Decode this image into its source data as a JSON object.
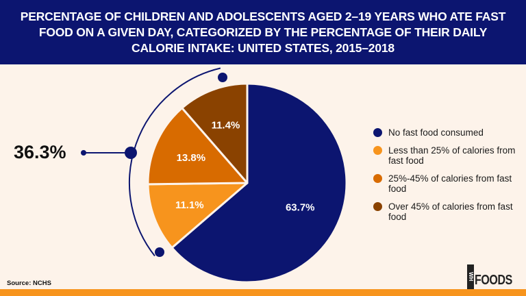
{
  "title": "PERCENTAGE OF CHILDREN AND ADOLESCENTS AGED 2–19 YEARS WHO ATE FAST FOOD ON A GIVEN DAY, CATEGORIZED BY THE PERCENTAGE OF THEIR DAILY CALORIE INTAKE: UNITED STATES, 2015–2018",
  "chart_data": {
    "type": "pie",
    "slices": [
      {
        "name": "No fast food consumed",
        "value": 63.7,
        "label": "63.7%",
        "color": "#0c1570"
      },
      {
        "name": "Less than 25% of calories from fast food",
        "value": 11.1,
        "label": "11.1%",
        "color": "#f7941d"
      },
      {
        "name": "25%-45% of calories from fast food",
        "value": 13.8,
        "label": "13.8%",
        "color": "#d86b00"
      },
      {
        "name": "Over 45% of calories from fast food",
        "value": 11.4,
        "label": "11.4%",
        "color": "#8a4200"
      }
    ],
    "annotation": "36.3%",
    "legend_placement": "right"
  },
  "source": "Source: NCHS",
  "logo": {
    "mark": "WH",
    "text": "FOODS"
  },
  "colors": {
    "header": "#0c1570",
    "background": "#fdf3ea",
    "accent": "#f7941d"
  }
}
